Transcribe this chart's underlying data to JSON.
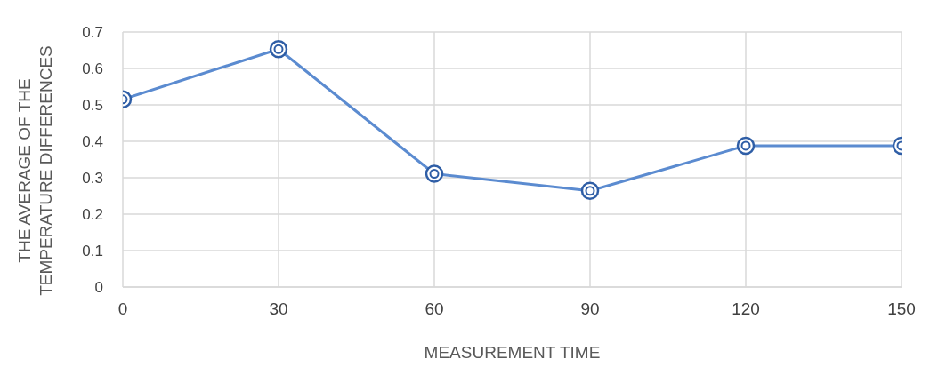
{
  "chart_data": {
    "type": "line",
    "xlabel": "MEASUREMENT TIME",
    "ylabel": "THE AVERAGE OF THE TEMPERATURE DIFFERENCES",
    "x": [
      0,
      30,
      60,
      90,
      120,
      150
    ],
    "series": [
      {
        "color": "#5b8bd0",
        "values": [
          0.515,
          0.653,
          0.311,
          0.264,
          0.388,
          0.388
        ]
      }
    ],
    "xlim": [
      0,
      150
    ],
    "xticks": [
      0,
      30,
      60,
      90,
      120,
      150
    ],
    "ylim": [
      0,
      0.7
    ],
    "yticks": [
      0,
      0.1,
      0.2,
      0.3,
      0.4,
      0.5,
      0.6,
      0.7
    ],
    "grid": true,
    "marker": "circle",
    "line_style": "solid"
  }
}
